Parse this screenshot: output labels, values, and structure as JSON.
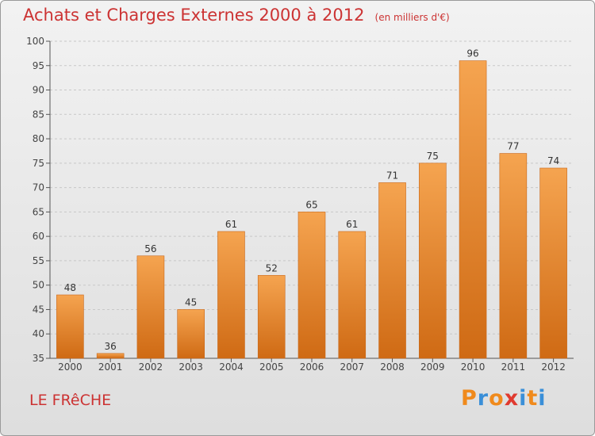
{
  "chart_data": {
    "type": "bar",
    "title": "Achats et Charges Externes 2000 à 2012",
    "subtitle": "(en milliers d'€)",
    "categories": [
      "2000",
      "2001",
      "2002",
      "2003",
      "2004",
      "2005",
      "2006",
      "2007",
      "2008",
      "2009",
      "2010",
      "2011",
      "2012"
    ],
    "values": [
      48,
      36,
      56,
      45,
      61,
      52,
      65,
      61,
      71,
      75,
      96,
      77,
      74
    ],
    "ylim": [
      35,
      100
    ],
    "yticks": [
      35,
      40,
      45,
      50,
      55,
      60,
      65,
      70,
      75,
      80,
      85,
      90,
      95,
      100
    ],
    "grid": true,
    "bar_color": "#e8862e"
  },
  "footer": {
    "commune": "LE FRêCHE",
    "logo_text": "Proxiti",
    "logo_colors": [
      "#f08a1c",
      "#3a8fd8",
      "#f08a1c",
      "#e03a2f",
      "#3a8fd8",
      "#f08a1c",
      "#3a8fd8"
    ]
  }
}
